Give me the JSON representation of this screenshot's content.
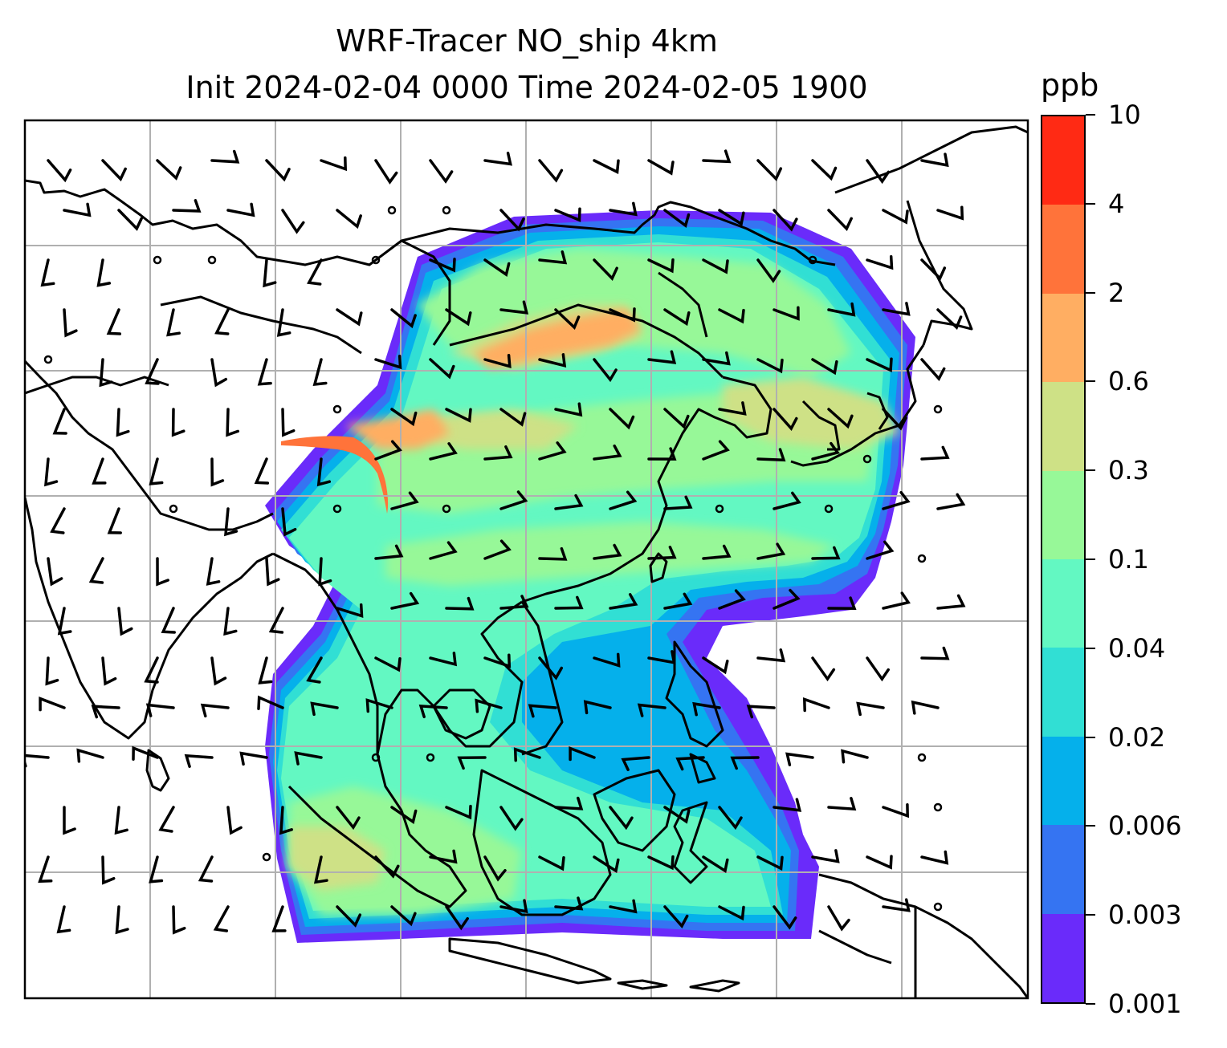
{
  "title": {
    "line1": "WRF-Tracer NO_ship 4km",
    "line2": "Init 2024-02-04 0000 Time 2024-02-05 1900"
  },
  "colorbar": {
    "unit": "ppb",
    "levels": [
      "0.001",
      "0.003",
      "0.006",
      "0.02",
      "0.04",
      "0.1",
      "0.3",
      "0.6",
      "2",
      "4",
      "10"
    ],
    "colors": [
      "#6a2bfa",
      "#3574f2",
      "#05b0eb",
      "#31dfd4",
      "#63f8c2",
      "#97f898",
      "#cee186",
      "#ffae62",
      "#ff733a",
      "#ff2a14"
    ]
  },
  "map": {
    "background": "#ffffff",
    "gridline_color": "#b0b0b0",
    "coastline_color": "#000000",
    "barb_color": "#000000"
  }
}
